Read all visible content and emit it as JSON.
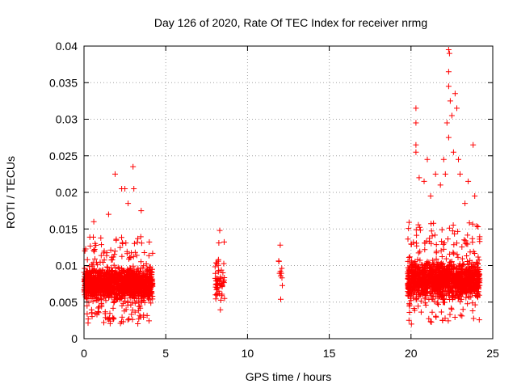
{
  "chart_data": {
    "type": "scatter",
    "title": "Day 126 of 2020, Rate Of TEC Index for receiver nrmg",
    "xlabel": "GPS time / hours",
    "ylabel": "ROTI / TECUs",
    "xlim": [
      0,
      25
    ],
    "ylim": [
      0,
      0.04
    ],
    "xticks": [
      "0",
      "5",
      "10",
      "15",
      "20",
      "25"
    ],
    "yticks": [
      "0",
      "0.005",
      "0.01",
      "0.015",
      "0.02",
      "0.025",
      "0.03",
      "0.035",
      "0.04"
    ],
    "grid": true,
    "marker": "+",
    "color": "#ff0000",
    "series": [
      {
        "name": "ROTI",
        "clusters": [
          {
            "x_range": [
              0.0,
              4.2
            ],
            "y_min": 0.002,
            "y_max": 0.014,
            "y_typical": [
              0.004,
              0.011
            ],
            "count": 1400
          },
          {
            "x_range": [
              8.0,
              8.6
            ],
            "y_min": 0.0035,
            "y_max": 0.015,
            "y_typical": [
              0.004,
              0.012
            ],
            "count": 60
          },
          {
            "x_range": [
              11.9,
              12.2
            ],
            "y_min": 0.005,
            "y_max": 0.013,
            "y_typical": [
              0.006,
              0.012
            ],
            "count": 10
          },
          {
            "x_range": [
              19.8,
              24.2
            ],
            "y_min": 0.002,
            "y_max": 0.016,
            "y_typical": [
              0.004,
              0.012
            ],
            "count": 1400
          }
        ],
        "extreme_points": [
          {
            "x": 1.9,
            "y": 0.0225
          },
          {
            "x": 2.3,
            "y": 0.0205
          },
          {
            "x": 2.5,
            "y": 0.0205
          },
          {
            "x": 3.0,
            "y": 0.0235
          },
          {
            "x": 3.05,
            "y": 0.0205
          },
          {
            "x": 1.5,
            "y": 0.017
          },
          {
            "x": 3.5,
            "y": 0.0175
          },
          {
            "x": 0.6,
            "y": 0.016
          },
          {
            "x": 2.7,
            "y": 0.0185
          },
          {
            "x": 20.3,
            "y": 0.0315
          },
          {
            "x": 20.3,
            "y": 0.0295
          },
          {
            "x": 20.3,
            "y": 0.0265
          },
          {
            "x": 20.3,
            "y": 0.0255
          },
          {
            "x": 20.5,
            "y": 0.022
          },
          {
            "x": 20.8,
            "y": 0.0215
          },
          {
            "x": 21.0,
            "y": 0.0245
          },
          {
            "x": 21.5,
            "y": 0.0225
          },
          {
            "x": 21.8,
            "y": 0.021
          },
          {
            "x": 22.0,
            "y": 0.0245
          },
          {
            "x": 22.1,
            "y": 0.0225
          },
          {
            "x": 22.2,
            "y": 0.0295
          },
          {
            "x": 22.3,
            "y": 0.0275
          },
          {
            "x": 22.3,
            "y": 0.0395
          },
          {
            "x": 22.35,
            "y": 0.039
          },
          {
            "x": 22.3,
            "y": 0.0365
          },
          {
            "x": 22.3,
            "y": 0.0345
          },
          {
            "x": 22.4,
            "y": 0.0325
          },
          {
            "x": 22.5,
            "y": 0.0305
          },
          {
            "x": 22.6,
            "y": 0.0255
          },
          {
            "x": 22.7,
            "y": 0.0335
          },
          {
            "x": 22.8,
            "y": 0.0315
          },
          {
            "x": 22.9,
            "y": 0.0245
          },
          {
            "x": 23.0,
            "y": 0.0225
          },
          {
            "x": 23.3,
            "y": 0.0185
          },
          {
            "x": 23.8,
            "y": 0.0265
          },
          {
            "x": 23.9,
            "y": 0.0195
          },
          {
            "x": 23.5,
            "y": 0.0215
          },
          {
            "x": 21.2,
            "y": 0.0195
          },
          {
            "x": 8.3,
            "y": 0.0148
          },
          {
            "x": 12.0,
            "y": 0.0128
          }
        ]
      }
    ]
  }
}
